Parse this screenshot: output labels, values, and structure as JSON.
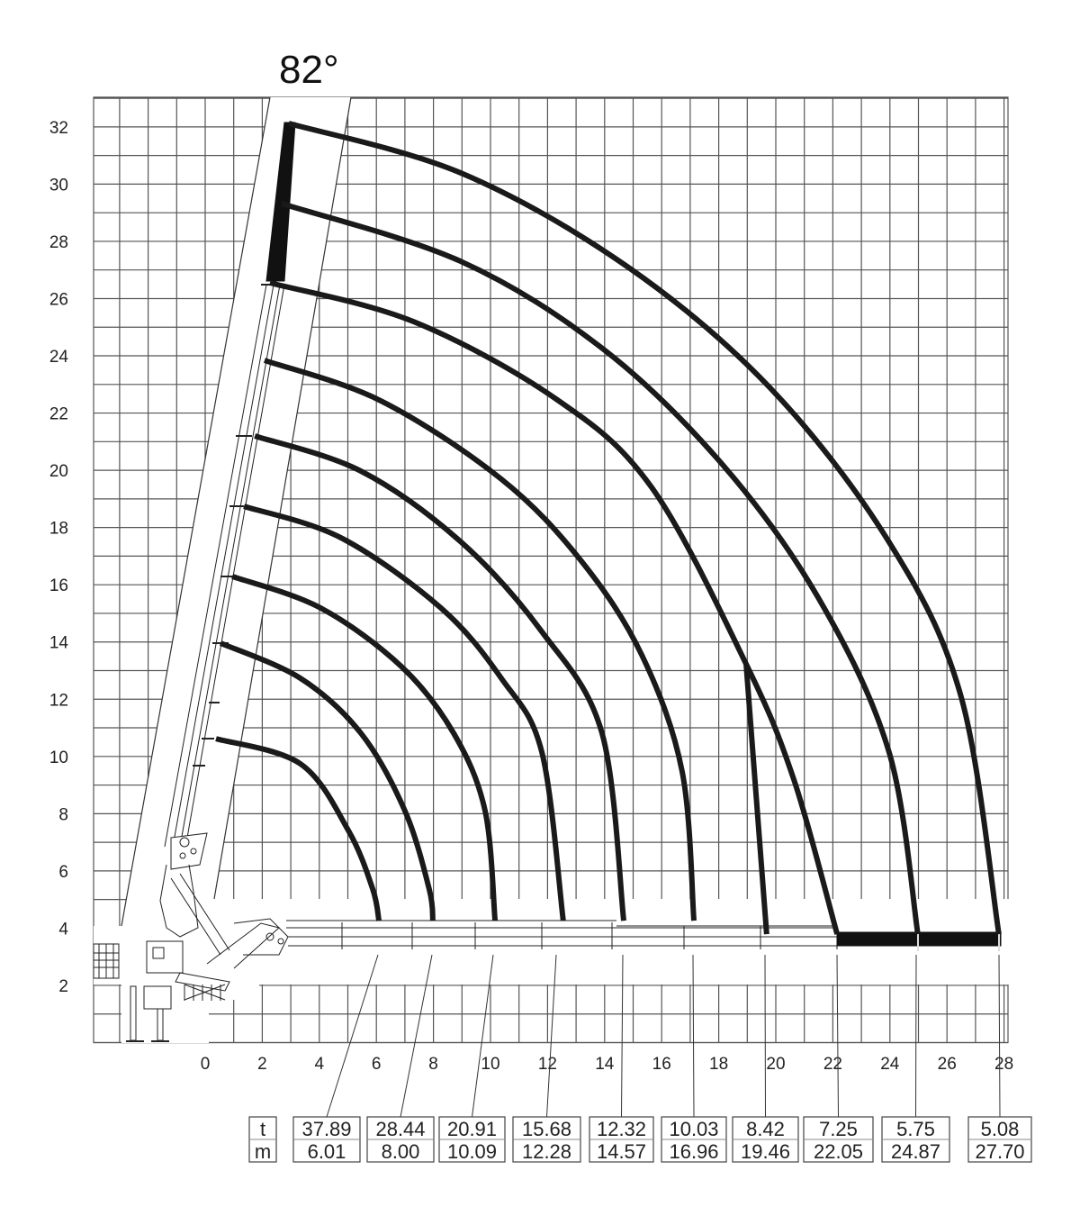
{
  "chart_data": {
    "type": "line",
    "title": "82°",
    "xlim": [
      -4,
      28
    ],
    "ylim": [
      0,
      33
    ],
    "grid": true,
    "x_ticks": [
      "0",
      "2",
      "4",
      "6",
      "8",
      "10",
      "12",
      "14",
      "16",
      "18",
      "20",
      "22",
      "24",
      "26",
      "28"
    ],
    "y_ticks": [
      "2",
      "4",
      "6",
      "8",
      "10",
      "12",
      "14",
      "16",
      "18",
      "20",
      "22",
      "24",
      "26",
      "28",
      "30",
      "32"
    ],
    "line_color": "#1a1a1a",
    "curves": [
      {
        "points": [
          [
            0.38,
            10.62
          ],
          [
            3.34,
            9.74
          ],
          [
            5.02,
            7.41
          ],
          [
            5.87,
            5.37
          ],
          [
            6.09,
            4.26
          ]
        ]
      },
      {
        "points": [
          [
            0.54,
            13.96
          ],
          [
            3.34,
            12.73
          ],
          [
            5.46,
            10.81
          ],
          [
            7.0,
            8.1
          ],
          [
            7.85,
            5.37
          ],
          [
            7.98,
            4.26
          ]
        ]
      },
      {
        "points": [
          [
            0.95,
            16.29
          ],
          [
            4.04,
            15.19
          ],
          [
            6.88,
            13.14
          ],
          [
            8.71,
            10.81
          ],
          [
            9.81,
            8.1
          ],
          [
            10.16,
            4.26
          ]
        ]
      },
      {
        "points": [
          [
            1.36,
            18.74
          ],
          [
            4.76,
            17.64
          ],
          [
            8.26,
            15.19
          ],
          [
            10.38,
            12.73
          ],
          [
            11.8,
            10.15
          ],
          [
            12.55,
            4.26
          ]
        ]
      },
      {
        "points": [
          [
            1.74,
            21.2
          ],
          [
            5.46,
            19.97
          ],
          [
            8.96,
            17.5
          ],
          [
            11.8,
            14.36
          ],
          [
            13.91,
            10.81
          ],
          [
            14.67,
            4.26
          ]
        ]
      },
      {
        "points": [
          [
            2.08,
            23.84
          ],
          [
            6.15,
            22.43
          ],
          [
            10.38,
            19.69
          ],
          [
            13.19,
            16.82
          ],
          [
            15.3,
            13.55
          ],
          [
            16.72,
            9.46
          ],
          [
            17.13,
            4.26
          ]
        ]
      },
      {
        "points": [
          [
            2.27,
            26.55
          ],
          [
            7.29,
            25.2
          ],
          [
            12.3,
            22.49
          ],
          [
            15.65,
            19.4
          ],
          [
            18.96,
            13.23
          ],
          [
            20.63,
            9.2
          ],
          [
            22.15,
            3.79
          ]
        ]
      },
      {
        "points": [
          [
            18.96,
            13.23
          ],
          [
            19.68,
            3.79
          ]
        ]
      },
      {
        "points": [
          [
            2.68,
            29.32
          ],
          [
            8.96,
            27.3
          ],
          [
            13.97,
            24.22
          ],
          [
            18.14,
            20.19
          ],
          [
            21.48,
            15.56
          ],
          [
            23.97,
            10.15
          ],
          [
            24.98,
            3.79
          ]
        ]
      },
      {
        "points": [
          [
            2.93,
            32.12
          ],
          [
            8.96,
            30.39
          ],
          [
            14.79,
            27.12
          ],
          [
            19.81,
            22.87
          ],
          [
            23.97,
            17.49
          ],
          [
            26.5,
            12.07
          ],
          [
            27.82,
            3.79
          ]
        ]
      }
    ],
    "table": {
      "row_labels": [
        "t",
        "m"
      ],
      "columns": [
        {
          "t": "37.89",
          "m": "6.01"
        },
        {
          "t": "28.44",
          "m": "8.00"
        },
        {
          "t": "20.91",
          "m": "10.09"
        },
        {
          "t": "15.68",
          "m": "12.28"
        },
        {
          "t": "12.32",
          "m": "14.57"
        },
        {
          "t": "10.03",
          "m": "16.96"
        },
        {
          "t": "8.42",
          "m": "19.46"
        },
        {
          "t": "7.25",
          "m": "22.05"
        },
        {
          "t": "5.75",
          "m": "24.87"
        },
        {
          "t": "5.08",
          "m": "27.70"
        }
      ]
    }
  }
}
